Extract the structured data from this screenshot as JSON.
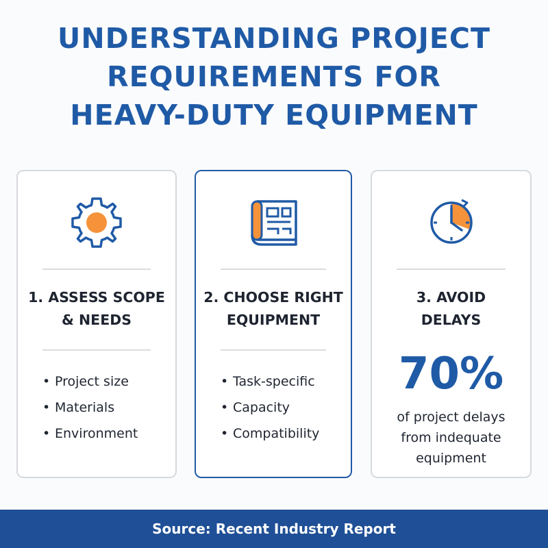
{
  "title": {
    "line1": "UNDERSTANDING PROJECT",
    "line2": "REQUIREMENTS FOR",
    "line3": "HEAVY-DUTY EQUIPMENT"
  },
  "colors": {
    "primary_blue": "#1f5aa6",
    "accent_orange": "#f5923a",
    "footer_blue": "#1f4f96"
  },
  "cards": [
    {
      "icon": "gear-icon",
      "heading_line1": "1. ASSESS SCOPE",
      "heading_line2": "& NEEDS",
      "bullets": [
        "Project size",
        "Materials",
        "Environment"
      ]
    },
    {
      "icon": "blueprint-icon",
      "heading_line1": "2. CHOOSE RIGHT",
      "heading_line2": "EQUIPMENT",
      "bullets": [
        "Task-specific",
        "Capacity",
        "Compatibility"
      ]
    },
    {
      "icon": "clock-icon",
      "heading_line1": "3. AVOID",
      "heading_line2": "DELAYS",
      "stat_value": "70%",
      "stat_caption_line1": "of project delays",
      "stat_caption_line2": "from indequate",
      "stat_caption_line3": "equipment"
    }
  ],
  "bullet_symbol": "•",
  "footer": {
    "source": "Source: Recent Industry Report"
  }
}
